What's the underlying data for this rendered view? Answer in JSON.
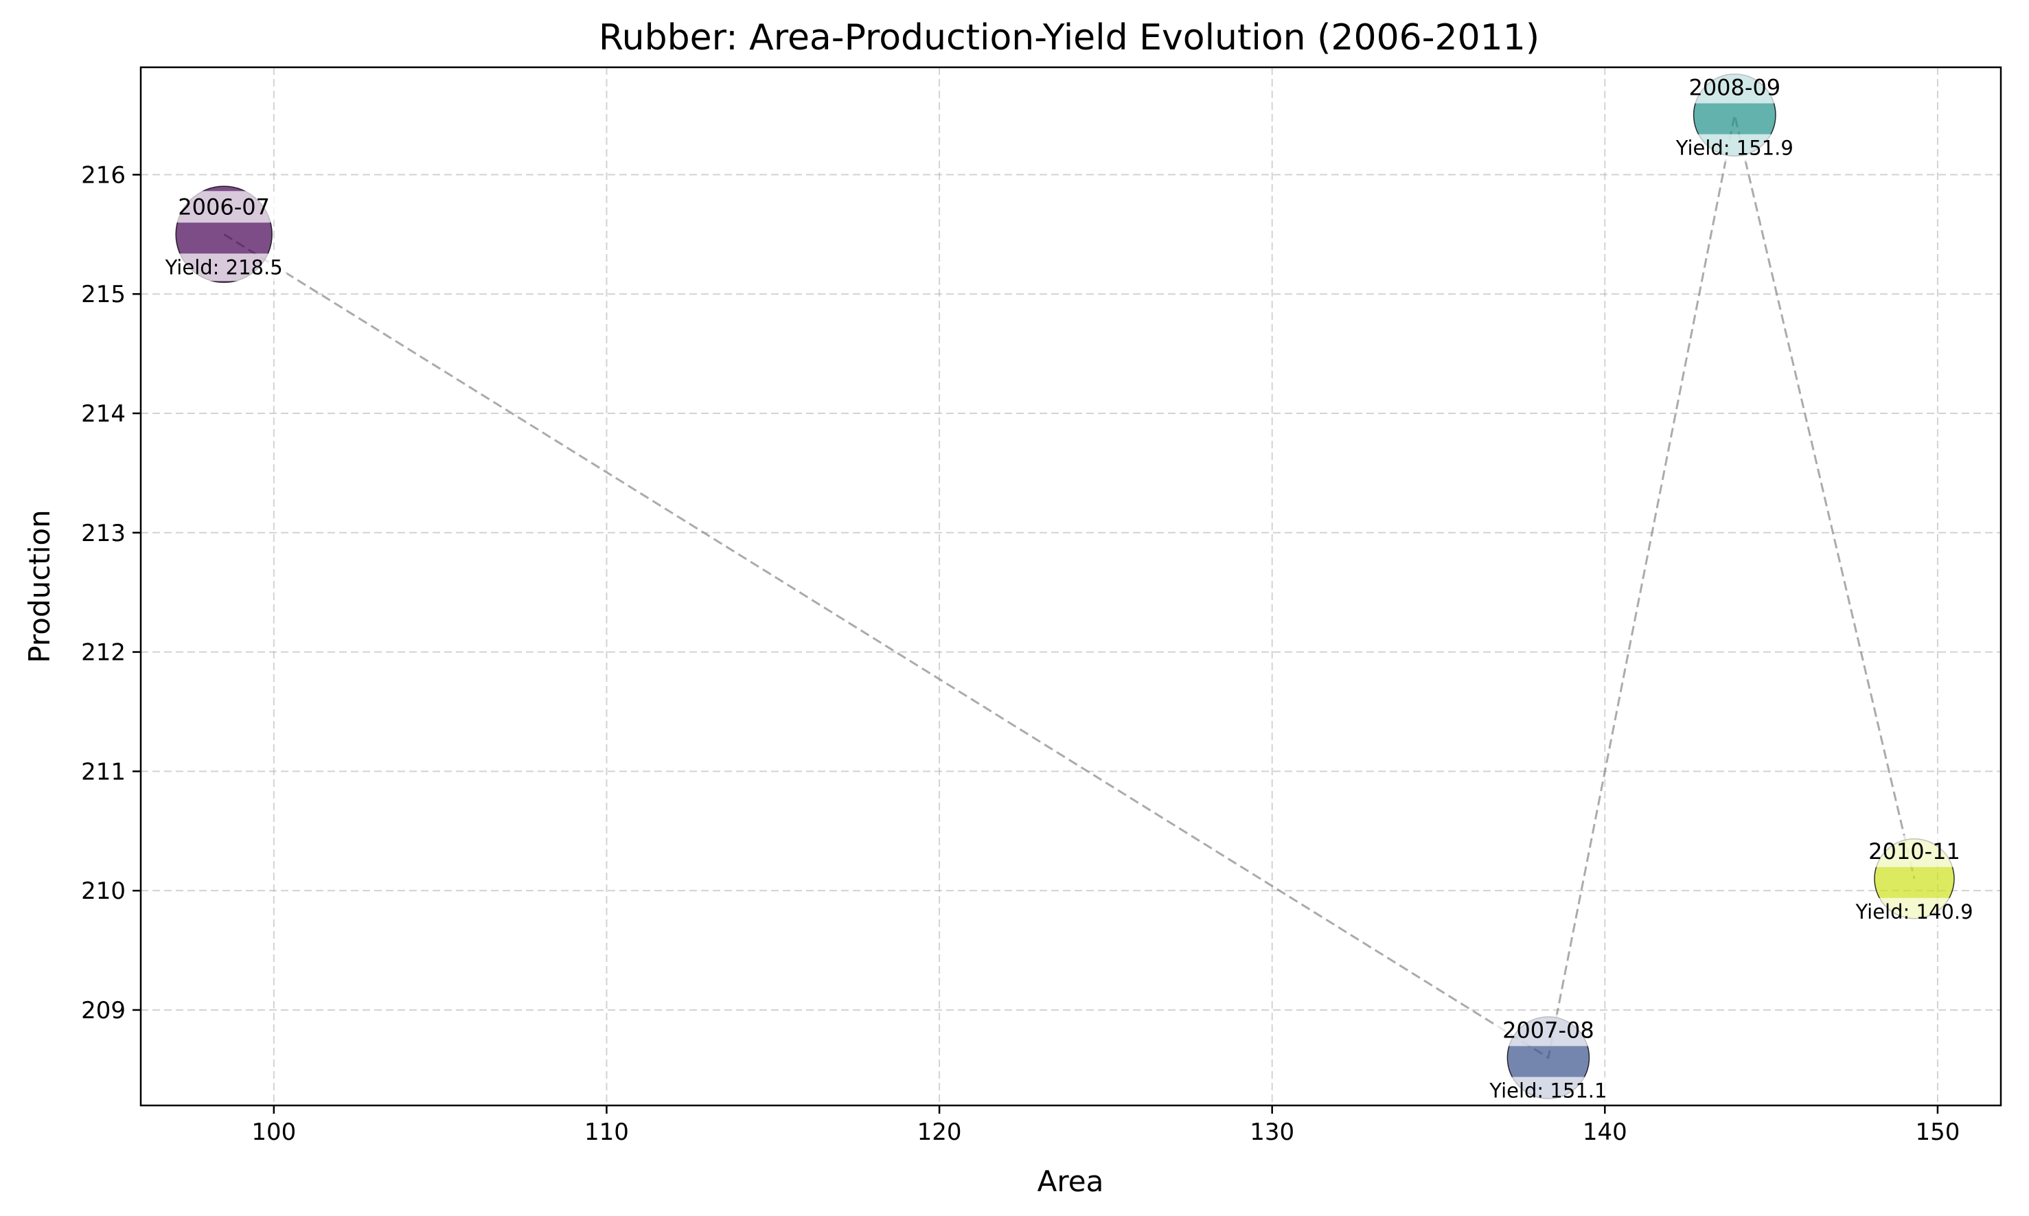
{
  "chart_data": {
    "type": "scatter",
    "title": "Rubber: Area-Production-Yield Evolution (2006-2011)",
    "xlabel": "Area",
    "ylabel": "Production",
    "xlim": [
      96,
      151.9
    ],
    "ylim": [
      208.2,
      216.9
    ],
    "xticks": [
      100,
      110,
      120,
      130,
      140,
      150
    ],
    "yticks": [
      209,
      210,
      211,
      212,
      213,
      214,
      215,
      216
    ],
    "grid": true,
    "points": [
      {
        "label": "2006-07",
        "x": 98.5,
        "y": 215.5,
        "yield": 218.5,
        "yield_text": "Yield: 218.5",
        "color": "#440154"
      },
      {
        "label": "2007-08",
        "x": 138.3,
        "y": 208.6,
        "yield": 151.1,
        "yield_text": "Yield: 151.1",
        "color": "#3b528b"
      },
      {
        "label": "2008-09",
        "x": 143.9,
        "y": 216.5,
        "yield": 151.9,
        "yield_text": "Yield: 151.9",
        "color": "#21918c"
      },
      {
        "label": "2010-11",
        "x": 149.3,
        "y": 210.1,
        "yield": 140.9,
        "yield_text": "Yield: 140.9",
        "color": "#cde11d"
      }
    ]
  }
}
